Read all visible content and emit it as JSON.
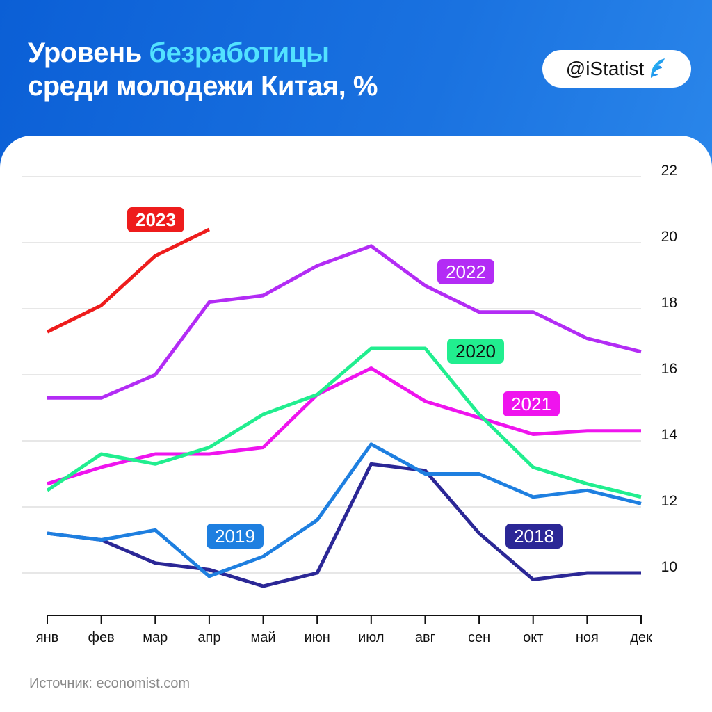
{
  "header": {
    "title_part1": "Уровень ",
    "title_accent": "безработицы",
    "title_line2": "среди молодежи Китая, %",
    "brand": "@iStatist",
    "logo_icon": "istatist-leaf-icon"
  },
  "source": "Источник: economist.com",
  "chart_data": {
    "type": "line",
    "title": "Уровень безработицы среди молодежи Китая, %",
    "categories": [
      "янв",
      "фев",
      "мар",
      "апр",
      "май",
      "июн",
      "июл",
      "авг",
      "сен",
      "окт",
      "ноя",
      "дек"
    ],
    "y_ticks": [
      10,
      12,
      14,
      16,
      18,
      20,
      22
    ],
    "ylim": [
      8.9,
      22.2
    ],
    "grid": true,
    "y_axis_side": "right",
    "series": [
      {
        "name": "2023",
        "color": "#ee1c1c",
        "label_style": "filled",
        "label_text_color": "#ffffff",
        "values": [
          17.3,
          18.1,
          19.6,
          20.4,
          null,
          null,
          null,
          null,
          null,
          null,
          null,
          null
        ]
      },
      {
        "name": "2022",
        "color": "#b32cf5",
        "label_style": "filled",
        "label_text_color": "#ffffff",
        "values": [
          15.3,
          15.3,
          16.0,
          18.2,
          18.4,
          19.3,
          19.9,
          18.7,
          17.9,
          17.9,
          17.1,
          16.7
        ]
      },
      {
        "name": "2020",
        "color": "#21ee8f",
        "label_style": "filled",
        "label_text_color": "#111111",
        "values": [
          12.5,
          13.6,
          13.3,
          13.8,
          14.8,
          15.4,
          16.8,
          16.8,
          14.8,
          13.2,
          12.7,
          12.3
        ]
      },
      {
        "name": "2021",
        "color": "#ef14ee",
        "label_style": "filled",
        "label_text_color": "#ffffff",
        "values": [
          12.7,
          13.2,
          13.6,
          13.6,
          13.8,
          15.4,
          16.2,
          15.2,
          14.7,
          14.2,
          14.3,
          14.3
        ]
      },
      {
        "name": "2019",
        "color": "#1e7fe0",
        "label_style": "filled",
        "label_text_color": "#ffffff",
        "values": [
          11.2,
          11.0,
          11.3,
          9.9,
          10.5,
          11.6,
          13.9,
          13.0,
          13.0,
          12.3,
          12.5,
          12.1
        ]
      },
      {
        "name": "2018",
        "color": "#2b2796",
        "label_style": "filled",
        "label_text_color": "#ffffff",
        "values": [
          11.2,
          11.0,
          10.3,
          10.1,
          9.6,
          10.0,
          13.3,
          13.1,
          11.2,
          9.8,
          10.0,
          10.0
        ]
      }
    ]
  }
}
